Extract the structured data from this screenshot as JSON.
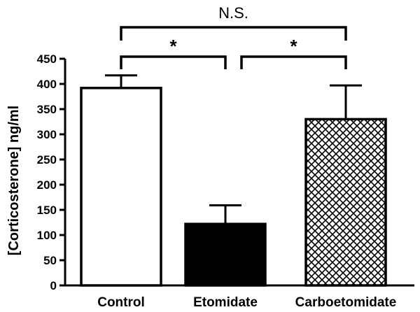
{
  "chart_data": {
    "type": "bar",
    "title": "",
    "xlabel": "",
    "ylabel": "[Corticosterone] ng/ml",
    "ylim": [
      0,
      450
    ],
    "yticks": [
      0,
      50,
      100,
      150,
      200,
      250,
      300,
      350,
      400,
      450
    ],
    "grid": false,
    "categories": [
      "Control",
      "Etomidate",
      "Carboetomidate"
    ],
    "values": [
      392,
      122,
      330
    ],
    "errors": [
      25,
      37,
      67
    ],
    "fills": [
      "white",
      "black",
      "crosshatch"
    ],
    "annotations": [
      {
        "from": "Control",
        "to": "Etomidate",
        "label": "*"
      },
      {
        "from": "Etomidate",
        "to": "Carboetomidate",
        "label": "*"
      },
      {
        "from": "Control",
        "to": "Carboetomidate",
        "label": "N.S."
      }
    ]
  },
  "colors": {
    "ink": "#000000",
    "background": "#ffffff"
  }
}
